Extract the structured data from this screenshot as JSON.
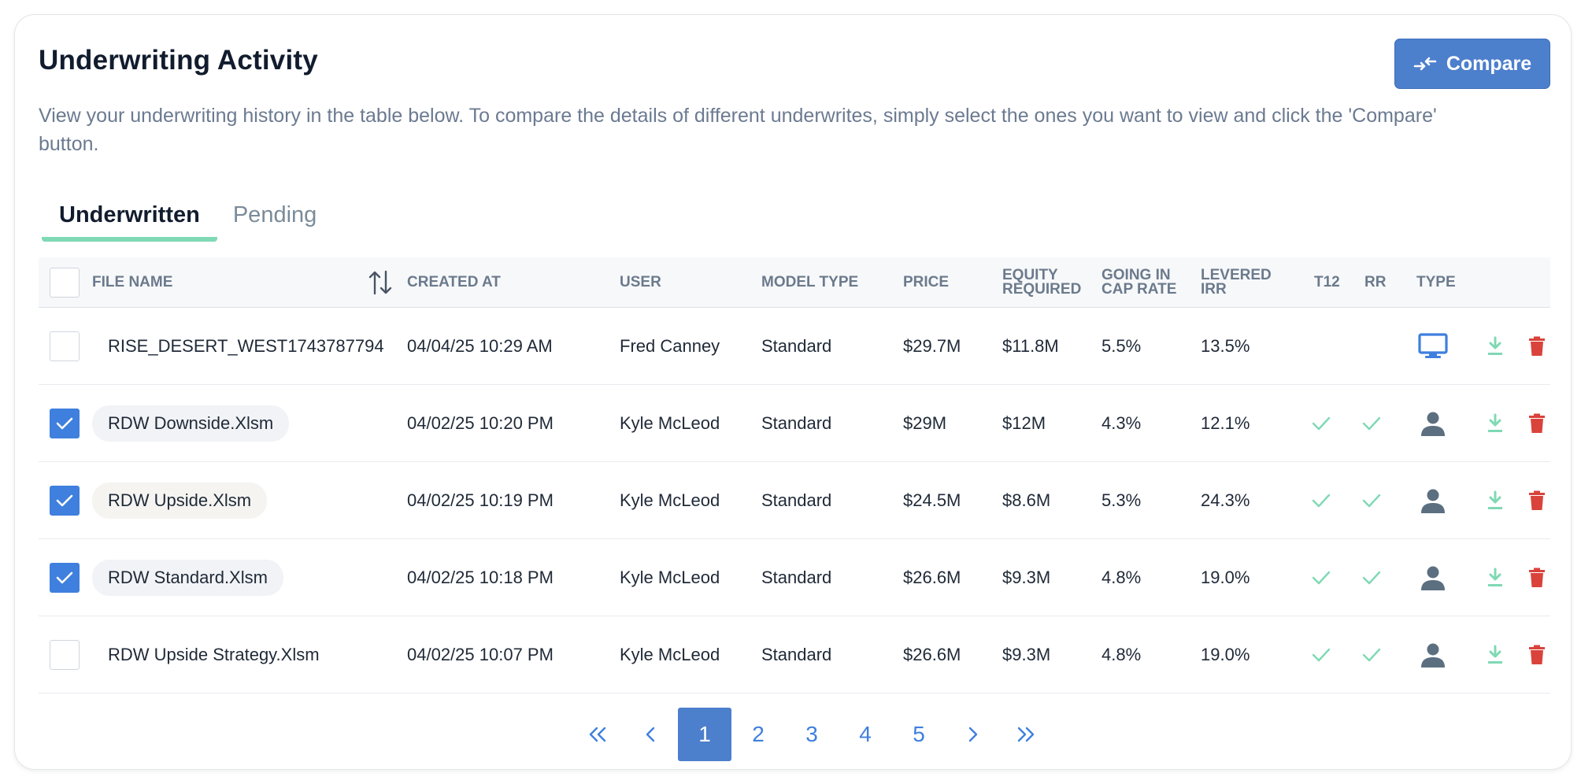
{
  "header": {
    "title": "Underwriting Activity",
    "compare_label": "Compare",
    "description": "View your underwriting history in the table below. To compare the details of different underwrites, simply select the ones you want to view and click the 'Compare' button."
  },
  "tabs": [
    {
      "label": "Underwritten",
      "active": true
    },
    {
      "label": "Pending",
      "active": false
    }
  ],
  "columns": {
    "file_name": "FILE NAME",
    "created_at": "CREATED AT",
    "user": "USER",
    "model_type": "MODEL TYPE",
    "price": "PRICE",
    "equity_required": "EQUITY REQUIRED",
    "going_in_cap_rate": "GOING IN CAP RATE",
    "levered_irr": "LEVERED IRR",
    "t12": "T12",
    "rr": "RR",
    "type": "TYPE"
  },
  "rows": [
    {
      "checked": false,
      "file_name": "RISE_DESERT_WEST1743787794",
      "pill": "none",
      "created_at": "04/04/25 10:29 AM",
      "user": "Fred Canney",
      "model_type": "Standard",
      "price": "$29.7M",
      "equity_required": "$11.8M",
      "cap_rate": "5.5%",
      "levered_irr": "13.5%",
      "t12": false,
      "rr": false,
      "type_icon": "monitor-icon"
    },
    {
      "checked": true,
      "file_name": "RDW Downside.Xlsm",
      "pill": "blue",
      "created_at": "04/02/25 10:20 PM",
      "user": "Kyle McLeod",
      "model_type": "Standard",
      "price": "$29M",
      "equity_required": "$12M",
      "cap_rate": "4.3%",
      "levered_irr": "12.1%",
      "t12": true,
      "rr": true,
      "type_icon": "person-icon"
    },
    {
      "checked": true,
      "file_name": "RDW Upside.Xlsm",
      "pill": "cream",
      "created_at": "04/02/25 10:19 PM",
      "user": "Kyle McLeod",
      "model_type": "Standard",
      "price": "$24.5M",
      "equity_required": "$8.6M",
      "cap_rate": "5.3%",
      "levered_irr": "24.3%",
      "t12": true,
      "rr": true,
      "type_icon": "person-icon"
    },
    {
      "checked": true,
      "file_name": "RDW Standard.Xlsm",
      "pill": "blue",
      "created_at": "04/02/25 10:18 PM",
      "user": "Kyle McLeod",
      "model_type": "Standard",
      "price": "$26.6M",
      "equity_required": "$9.3M",
      "cap_rate": "4.8%",
      "levered_irr": "19.0%",
      "t12": true,
      "rr": true,
      "type_icon": "person-icon"
    },
    {
      "checked": false,
      "file_name": "RDW Upside Strategy.Xlsm",
      "pill": "none",
      "created_at": "04/02/25 10:07 PM",
      "user": "Kyle McLeod",
      "model_type": "Standard",
      "price": "$26.6M",
      "equity_required": "$9.3M",
      "cap_rate": "4.8%",
      "levered_irr": "19.0%",
      "t12": true,
      "rr": true,
      "type_icon": "person-icon"
    }
  ],
  "pagination": {
    "pages": [
      "1",
      "2",
      "3",
      "4",
      "5"
    ],
    "current": "1"
  },
  "colors": {
    "accent": "#4c7fcc",
    "checkbox": "#3f7fde",
    "tab_underline": "#7fd9b4",
    "check_mark": "#7fd9b4",
    "download": "#7fd9b4",
    "delete": "#d9433b",
    "monitor": "#3f7fde",
    "person": "#5c6f80"
  }
}
